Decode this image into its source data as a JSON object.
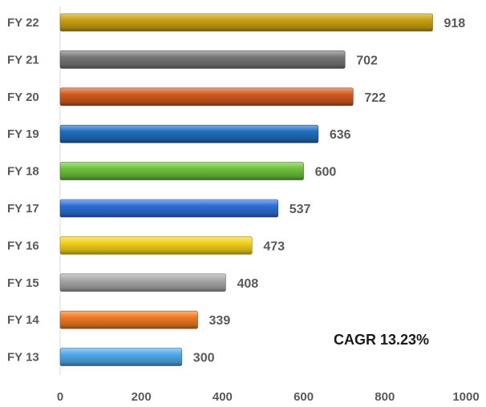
{
  "chart_data": {
    "type": "bar",
    "orientation": "horizontal",
    "categories": [
      "FY 22",
      "FY 21",
      "FY 20",
      "FY 19",
      "FY 18",
      "FY 17",
      "FY 16",
      "FY 15",
      "FY 14",
      "FY 13"
    ],
    "values": [
      918,
      702,
      722,
      636,
      600,
      537,
      473,
      408,
      339,
      300
    ],
    "bar_colors": [
      "#C9A012",
      "#767676",
      "#D25A1E",
      "#1F6FC0",
      "#6CC23A",
      "#2E6ED6",
      "#F2D21A",
      "#A8A8A8",
      "#F07A22",
      "#4FA8E8"
    ],
    "xticks": [
      "0",
      "200",
      "400",
      "600",
      "800",
      "1000"
    ],
    "xlim": [
      0,
      1000
    ],
    "data_labels": true,
    "grid": false,
    "legend": "none",
    "annotation": "CAGR 13.23%"
  }
}
